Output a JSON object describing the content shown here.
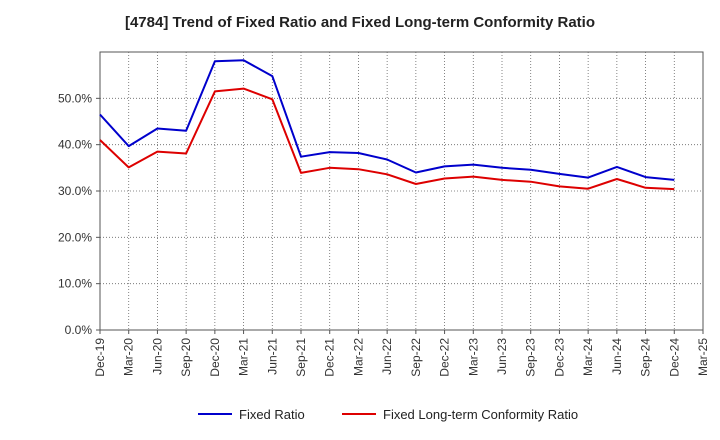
{
  "chart_data": {
    "type": "line",
    "title": "[4784]  Trend of Fixed Ratio and Fixed Long-term Conformity Ratio",
    "xlabel": "",
    "ylabel": "",
    "categories": [
      "Dec-19",
      "Mar-20",
      "Jun-20",
      "Sep-20",
      "Dec-20",
      "Mar-21",
      "Jun-21",
      "Sep-21",
      "Dec-21",
      "Mar-22",
      "Jun-22",
      "Sep-22",
      "Dec-22",
      "Mar-23",
      "Jun-23",
      "Sep-23",
      "Dec-23",
      "Mar-24",
      "Jun-24",
      "Sep-24",
      "Dec-24",
      "Mar-25"
    ],
    "ylim": [
      0,
      60
    ],
    "yticks": [
      0,
      10,
      20,
      30,
      40,
      50
    ],
    "ytick_labels": [
      "0.0%",
      "10.0%",
      "20.0%",
      "30.0%",
      "40.0%",
      "50.0%"
    ],
    "grid": true,
    "legend_position": "bottom",
    "series": [
      {
        "name": "Fixed Ratio",
        "color": "#0000cc",
        "values": [
          46.5,
          39.7,
          43.5,
          43.0,
          58.0,
          58.2,
          54.8,
          37.4,
          38.4,
          38.2,
          36.8,
          34.0,
          35.3,
          35.7,
          35.0,
          34.6,
          33.7,
          32.9,
          35.2,
          33.0,
          32.4,
          null
        ]
      },
      {
        "name": "Fixed Long-term Conformity Ratio",
        "color": "#dd0000",
        "values": [
          41.0,
          35.1,
          38.5,
          38.1,
          51.5,
          52.1,
          49.8,
          33.9,
          35.0,
          34.7,
          33.6,
          31.5,
          32.7,
          33.1,
          32.4,
          32.0,
          31.0,
          30.5,
          32.6,
          30.7,
          30.4,
          null
        ]
      }
    ]
  }
}
